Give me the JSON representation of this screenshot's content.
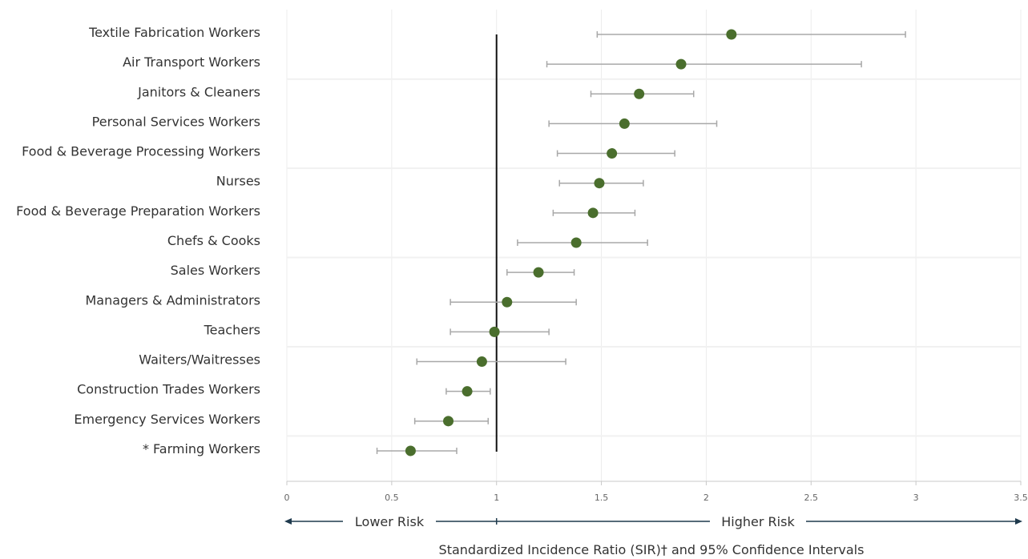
{
  "chart_data": {
    "type": "scatter",
    "title": "",
    "xlabel": "Standardized Incidence Ratio (SIR)† and 95% Confidence Intervals",
    "xlim": [
      0,
      3.5
    ],
    "xticks": [
      "0",
      "0.5",
      "1",
      "1.5",
      "2",
      "2.5",
      "3",
      "3.5"
    ],
    "reference_line": 1,
    "grid": "vertical",
    "marker_color": "#4a6e2d",
    "errorbar_color": "#a8a8a8",
    "categories": [
      "Textile Fabrication Workers",
      "Air Transport Workers",
      "Janitors & Cleaners",
      "Personal Services Workers",
      "Food & Beverage Processing Workers",
      "Nurses",
      "Food & Beverage Preparation Workers",
      "Chefs & Cooks",
      "Sales Workers",
      "Managers & Administrators",
      "Teachers",
      "Waiters/Waitresses",
      "Construction Trades Workers",
      "Emergency Services Workers",
      "* Farming Workers"
    ],
    "sir": [
      2.12,
      1.88,
      1.68,
      1.61,
      1.55,
      1.49,
      1.46,
      1.38,
      1.2,
      1.05,
      0.99,
      0.93,
      0.86,
      0.77,
      0.59
    ],
    "lower": [
      1.48,
      1.24,
      1.45,
      1.25,
      1.29,
      1.3,
      1.27,
      1.1,
      1.05,
      0.78,
      0.78,
      0.62,
      0.76,
      0.61,
      0.43
    ],
    "upper": [
      2.95,
      2.74,
      1.94,
      2.05,
      1.85,
      1.7,
      1.66,
      1.72,
      1.37,
      1.38,
      1.25,
      1.33,
      0.97,
      0.96,
      0.81
    ]
  },
  "risk_scale": {
    "lower_label": "Lower Risk",
    "higher_label": "Higher Risk",
    "color": "#1f3a4d"
  }
}
